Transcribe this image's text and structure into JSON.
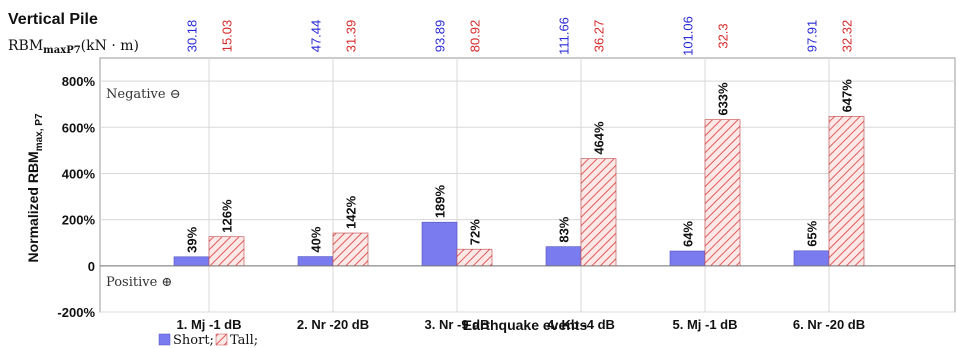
{
  "chart_data": {
    "type": "bar",
    "title": "Vertical Pile",
    "xlabel": "Earthquake events",
    "ylabel_main": "Normalized RBM",
    "ylabel_sub": "max, P7",
    "rbm_label_main": "RBM",
    "rbm_label_sub": "maxP7",
    "rbm_label_unit": "(kN · m)",
    "ylim": [
      -200,
      900
    ],
    "yticks": [
      {
        "value": -200,
        "label": "-200%"
      },
      {
        "value": 0,
        "label": "0"
      },
      {
        "value": 200,
        "label": "200%"
      },
      {
        "value": 400,
        "label": "400%"
      },
      {
        "value": 600,
        "label": "600%"
      },
      {
        "value": 800,
        "label": "800%"
      }
    ],
    "categories": [
      "1. Mj -1 dB",
      "2. Nr -20 dB",
      "3. Nr -9 dB",
      "4. Kb -4 dB",
      "5. Mj -1 dB",
      "6. Nr -20 dB"
    ],
    "series": [
      {
        "name": "Short",
        "color": "#7b7bf0",
        "pattern": "solid",
        "values": [
          39,
          40,
          189,
          83,
          64,
          65
        ],
        "value_labels": [
          "39%",
          "40%",
          "189%",
          "83%",
          "64%",
          "65%"
        ],
        "rbm_values": [
          "30.18",
          "47.44",
          "93.89",
          "111.66",
          "101.06",
          "97.91"
        ],
        "rbm_color": "#2b2bd6"
      },
      {
        "name": "Tall",
        "color": "#e05a5a",
        "pattern": "hatched",
        "values": [
          126,
          142,
          72,
          464,
          633,
          647
        ],
        "value_labels": [
          "126%",
          "142%",
          "72%",
          "464%",
          "633%",
          "647%"
        ],
        "rbm_values": [
          "15.03",
          "31.39",
          "80.92",
          "36.27",
          "32.3",
          "32.32"
        ],
        "rbm_color": "#d62828"
      }
    ],
    "annotations": {
      "negative": "Negative ⊖",
      "positive": "Positive ⊕"
    },
    "legend": {
      "position": "bottom-left",
      "items": [
        "Short;",
        "Tall;"
      ]
    },
    "grid": true
  }
}
